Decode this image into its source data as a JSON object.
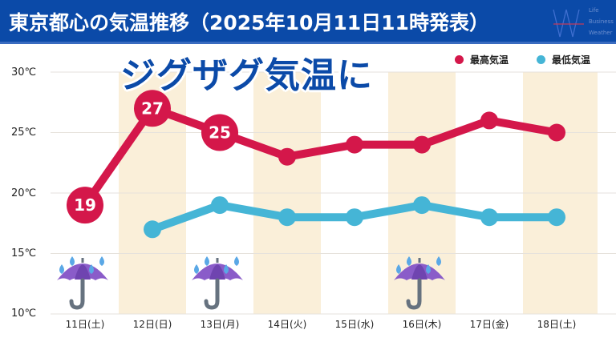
{
  "header": {
    "title": "東京都心の気温推移（2025年10月11日11時発表）",
    "logo_lines": [
      "Life",
      "Business",
      "Weather"
    ]
  },
  "headline": "ジグザグ気温に",
  "colors": {
    "header_bg": "#0b4aa8",
    "max_temp": "#d4174a",
    "min_temp": "#45b5d6",
    "band": "#faefd9",
    "headline": "#0b4aa8"
  },
  "chart_data": {
    "type": "line",
    "title": "東京都心の気温推移（2025年10月11日11時発表）",
    "categories": [
      "11日(土)",
      "12日(日)",
      "13日(月)",
      "14日(火)",
      "15日(水)",
      "16日(木)",
      "17日(金)",
      "18日(土)"
    ],
    "ylim": [
      10,
      30
    ],
    "yticks": [
      10,
      15,
      20,
      25,
      30
    ],
    "ytick_labels": [
      "10℃",
      "15℃",
      "20℃",
      "25℃",
      "30℃"
    ],
    "legend_position": "top-right",
    "series": [
      {
        "name": "最高気温",
        "values": [
          19,
          27,
          25,
          23,
          24,
          24,
          26,
          25
        ],
        "labeled": [
          true,
          true,
          true,
          false,
          false,
          false,
          false,
          false
        ]
      },
      {
        "name": "最低気温",
        "values": [
          null,
          17,
          19,
          18,
          18,
          19,
          18,
          18
        ]
      }
    ],
    "point_labels": [
      "19",
      "27",
      "25"
    ],
    "weather_icons": [
      {
        "day": "11日(土)",
        "icon": "umbrella-rain-icon"
      },
      {
        "day": "13日(月)",
        "icon": "umbrella-rain-icon"
      },
      {
        "day": "16日(木)",
        "icon": "umbrella-rain-icon"
      }
    ],
    "shaded_days": [
      "12日(日)",
      "14日(火)",
      "16日(木)",
      "18日(土)"
    ],
    "grid": true
  }
}
